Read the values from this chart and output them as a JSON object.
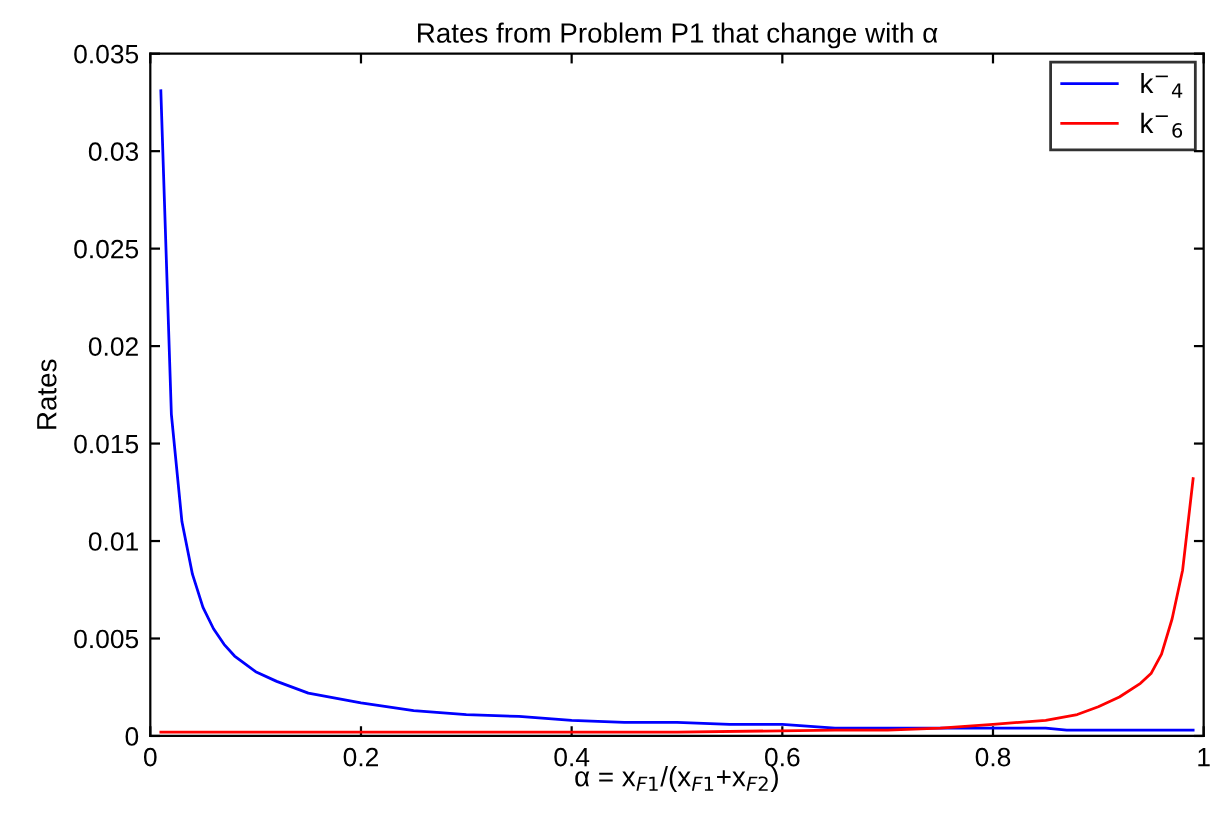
{
  "chart_data": {
    "type": "line",
    "title": "Rates from Problem P1 that change with α",
    "xlabel": "α = x$_{F1}$/(x$_{F1}$+x$_{F2}$)",
    "ylabel": "Rates",
    "series": [
      {
        "name": "k$^{−}$$_{4}$",
        "color": "#0000ff",
        "x": [
          0.01,
          0.02,
          0.03,
          0.04,
          0.05,
          0.06,
          0.07,
          0.08,
          0.09,
          0.1,
          0.12,
          0.15,
          0.2,
          0.25,
          0.3,
          0.35,
          0.4,
          0.45,
          0.5,
          0.55,
          0.6,
          0.65,
          0.7,
          0.75,
          0.8,
          0.85,
          0.87,
          0.9,
          0.95,
          0.99
        ],
        "values": [
          0.0331,
          0.0165,
          0.011,
          0.0083,
          0.0066,
          0.0055,
          0.0047,
          0.0041,
          0.0037,
          0.0033,
          0.0028,
          0.0022,
          0.0017,
          0.0013,
          0.0011,
          0.001,
          0.0008,
          0.0007,
          0.0007,
          0.0006,
          0.0006,
          0.0004,
          0.0004,
          0.0004,
          0.0004,
          0.0004,
          0.0003,
          0.0003,
          0.0003,
          0.0003
        ]
      },
      {
        "name": "k$^{−}$$_{6}$",
        "color": "#ff0000",
        "x": [
          0.01,
          0.5,
          0.65,
          0.7,
          0.75,
          0.8,
          0.85,
          0.88,
          0.9,
          0.92,
          0.94,
          0.95,
          0.96,
          0.97,
          0.98,
          0.99
        ],
        "values": [
          0.0002,
          0.0002,
          0.0003,
          0.0003,
          0.0004,
          0.0006,
          0.0008,
          0.0011,
          0.0015,
          0.002,
          0.0027,
          0.0032,
          0.0042,
          0.006,
          0.0085,
          0.0132
        ]
      }
    ],
    "xlim": [
      0,
      1
    ],
    "xticks": [
      0,
      0.2,
      0.4,
      0.6,
      0.8,
      1
    ],
    "ylim": [
      0,
      0.035
    ],
    "yticks": [
      0,
      0.005,
      0.01,
      0.015,
      0.02,
      0.025,
      0.03,
      0.035
    ],
    "grid": false,
    "legend": "top right",
    "marker": "none",
    "line_style": "solid"
  }
}
